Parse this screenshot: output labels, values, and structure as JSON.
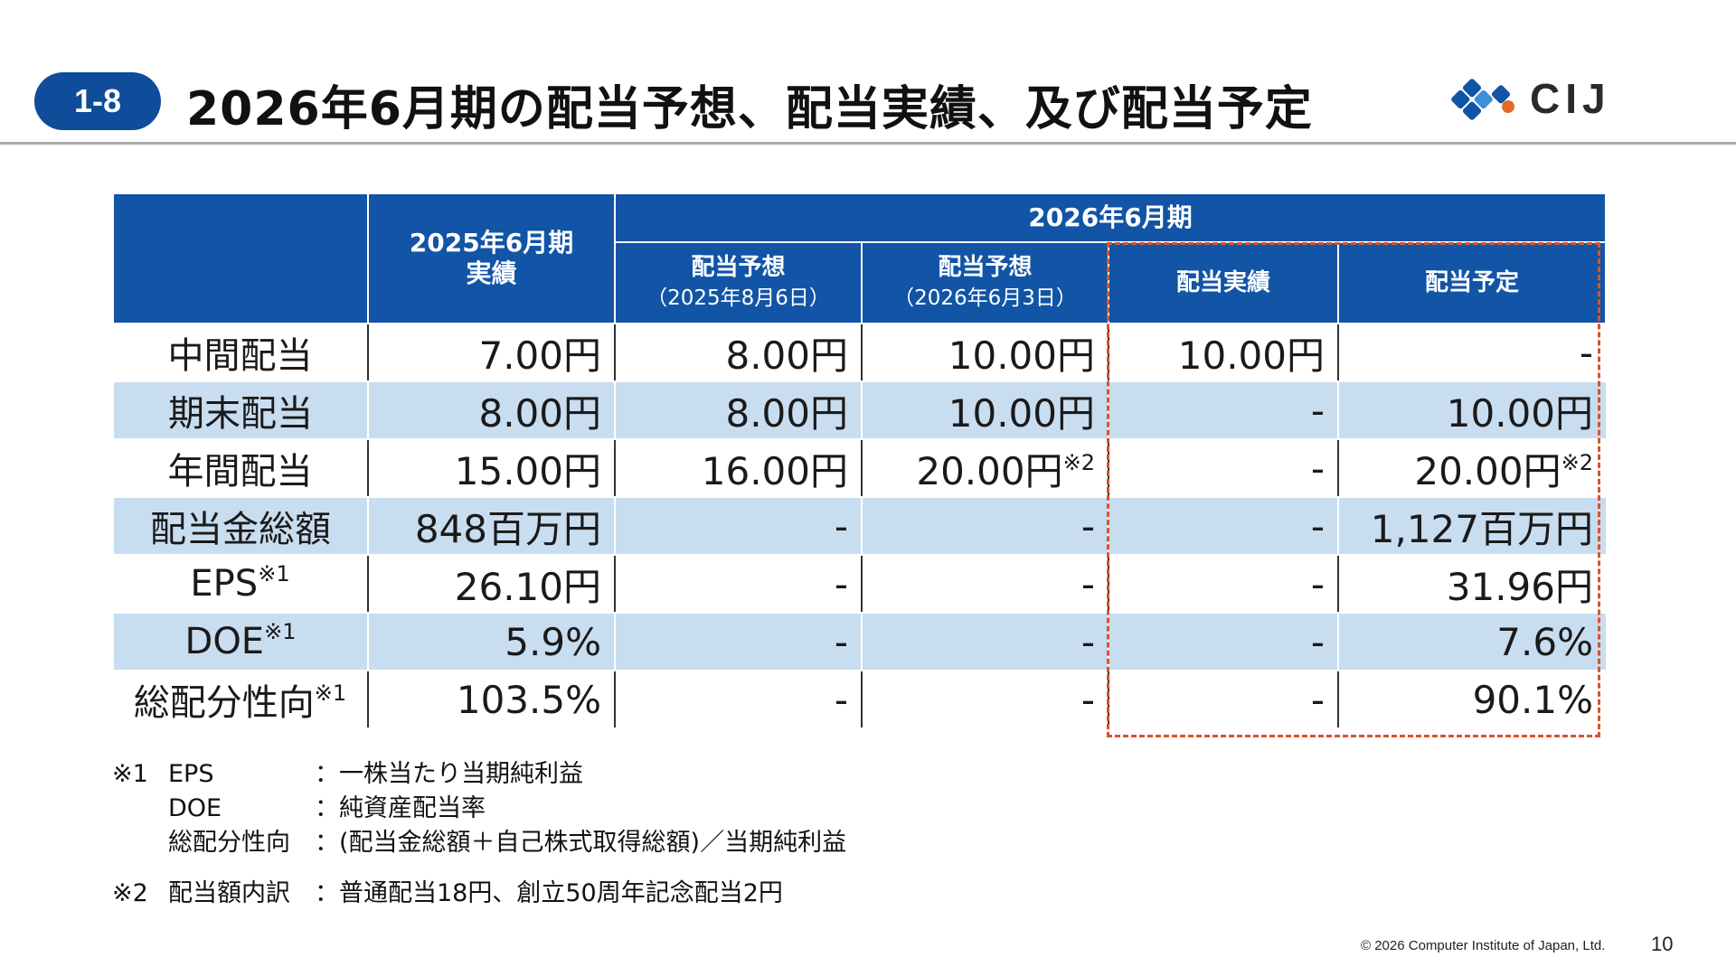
{
  "slide": {
    "section_number": "1-8",
    "title": "2026年6月期の配当予想、配当実績、及び配当予定",
    "logo_text": "CIJ",
    "copyright": "© 2026 Computer Institute of Japan, Ltd.",
    "page_number": "10",
    "colors": {
      "brand_blue": "#1254a6",
      "row_alt": "#c9ddf0",
      "highlight_border": "#d9532b"
    }
  },
  "table": {
    "header": {
      "fy2025": "2025年6月期",
      "fy2025_sub": "実績",
      "fy2026": "2026年6月期",
      "forecast1": "配当予想",
      "forecast1_date": "（2025年8月6日）",
      "forecast2": "配当予想",
      "forecast2_date": "（2026年6月3日）",
      "actual": "配当実績",
      "planned": "配当予定"
    },
    "rows": [
      {
        "label": "中間配当",
        "label_note": "",
        "v1": "7.00円",
        "v2": "8.00円",
        "v3": "10.00円",
        "v3_note": "",
        "v4": "10.00円",
        "v5": "-",
        "v5_note": ""
      },
      {
        "label": "期末配当",
        "label_note": "",
        "v1": "8.00円",
        "v2": "8.00円",
        "v3": "10.00円",
        "v3_note": "",
        "v4": "-",
        "v5": "10.00円",
        "v5_note": ""
      },
      {
        "label": "年間配当",
        "label_note": "",
        "v1": "15.00円",
        "v2": "16.00円",
        "v3": "20.00円",
        "v3_note": "※2",
        "v4": "-",
        "v5": "20.00円",
        "v5_note": "※2"
      },
      {
        "label": "配当金総額",
        "label_note": "",
        "v1": "848百万円",
        "v2": "-",
        "v3": "-",
        "v3_note": "",
        "v4": "-",
        "v5": "1,127百万円",
        "v5_note": ""
      },
      {
        "label": "EPS",
        "label_note": "※1",
        "v1": "26.10円",
        "v2": "-",
        "v3": "-",
        "v3_note": "",
        "v4": "-",
        "v5": "31.96円",
        "v5_note": ""
      },
      {
        "label": "DOE",
        "label_note": "※1",
        "v1": "5.9%",
        "v2": "-",
        "v3": "-",
        "v3_note": "",
        "v4": "-",
        "v5": "7.6%",
        "v5_note": ""
      },
      {
        "label": "総配分性向",
        "label_note": "※1",
        "v1": "103.5%",
        "v2": "-",
        "v3": "-",
        "v3_note": "",
        "v4": "-",
        "v5": "90.1%",
        "v5_note": ""
      }
    ]
  },
  "notes": {
    "n1_mark": "※1",
    "n1_items": [
      {
        "term": "EPS",
        "desc": "：一株当たり当期純利益"
      },
      {
        "term": "DOE",
        "desc": "：純資産配当率"
      },
      {
        "term": "総配分性向",
        "desc": "：(配当金総額＋自己株式取得総額)／当期純利益"
      }
    ],
    "n2_mark": "※2",
    "n2_term": "配当額内訳",
    "n2_desc": "：普通配当18円、創立50周年記念配当2円"
  }
}
